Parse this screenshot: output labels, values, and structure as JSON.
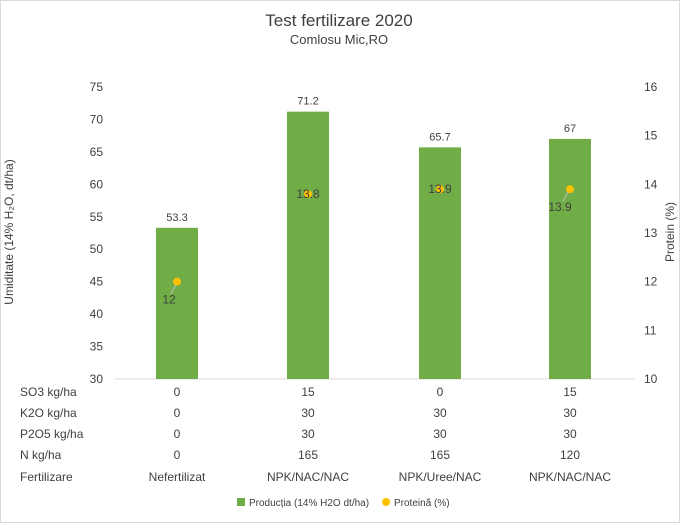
{
  "chart_data": {
    "type": "bar",
    "title": "Test fertilizare 2020",
    "subtitle": "Comlosu Mic,RO",
    "ylabel": "Umiditate (14% H₂O, dt/ha)",
    "y2label": "Protein (%)",
    "ylim": [
      30,
      75
    ],
    "yticks": [
      30,
      35,
      40,
      45,
      50,
      55,
      60,
      65,
      70,
      75
    ],
    "y2lim": [
      10,
      16
    ],
    "y2ticks": [
      10,
      11,
      12,
      13,
      14,
      15,
      16
    ],
    "categories": [
      "Nefertilizat",
      "NPK/NAC/NAC",
      "NPK/Uree/NAC",
      "NPK/NAC/NAC"
    ],
    "series": [
      {
        "name": "Producția (14% H2O dt/ha)",
        "kind": "bar",
        "axis": "left",
        "color": "#70ad47",
        "values": [
          53.3,
          71.2,
          65.7,
          67
        ],
        "labels": [
          "53.3",
          "71.2",
          "65.7",
          "67"
        ]
      },
      {
        "name": "Proteină (%)",
        "kind": "point",
        "axis": "right",
        "color": "#ffc000",
        "values": [
          12,
          13.8,
          13.9,
          13.9
        ],
        "labels": [
          "12",
          "13.8",
          "13.9",
          "13.9"
        ]
      }
    ],
    "table": {
      "rows": [
        {
          "label": "SO3 kg/ha",
          "values": [
            "0",
            "15",
            "0",
            "15"
          ]
        },
        {
          "label": "K2O kg/ha",
          "values": [
            "0",
            "30",
            "30",
            "30"
          ]
        },
        {
          "label": "P2O5 kg/ha",
          "values": [
            "0",
            "30",
            "30",
            "30"
          ]
        },
        {
          "label": "N kg/ha",
          "values": [
            "0",
            "165",
            "165",
            "120"
          ]
        },
        {
          "label": "Fertilizare",
          "values": [
            "Nefertilizat",
            "NPK/NAC/NAC",
            "NPK/Uree/NAC",
            "NPK/NAC/NAC"
          ]
        }
      ]
    },
    "legend_position": "bottom",
    "grid": false
  }
}
